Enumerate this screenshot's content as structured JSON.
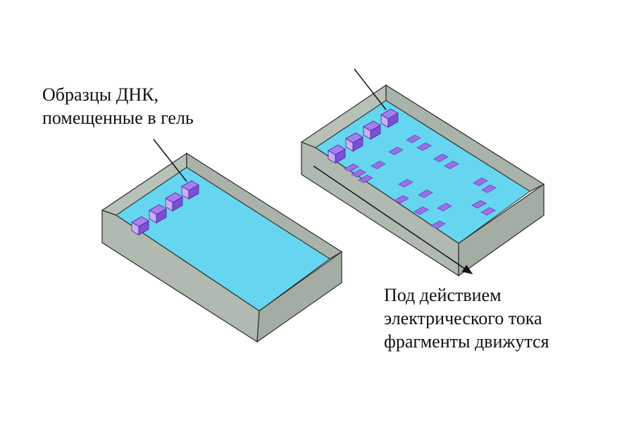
{
  "labels": {
    "samples_line1": "Образцы ДНК,",
    "samples_line2": "помещенные в гель",
    "current_line1": "Под действием",
    "current_line2": "электрического тока",
    "current_line3": "фрагменты движутся"
  },
  "colors": {
    "tray_wall": "#b7c1b7",
    "tray_wall_dark": "#a7b1a7",
    "tray_edge": "#2a2a2a",
    "gel": "#66d6f0",
    "well_front": "#7a4fd6",
    "well_top": "#a77ef0",
    "well_side": "#c9aef5",
    "band": "#9a6fe6",
    "band_edge": "#6b45c4"
  }
}
